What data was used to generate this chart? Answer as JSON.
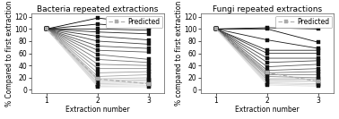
{
  "bacteria_title": "Bacteria repeated extractions",
  "fungi_title": "Fungi repeated extractions",
  "xlabel": "Extraction number",
  "ylabel": "% Compared to first extraction",
  "ylabel_fungi": "% compared to first extraction",
  "xlim": [
    0.7,
    3.3
  ],
  "ylim": [
    -5,
    125
  ],
  "yticks": [
    0,
    20,
    40,
    60,
    80,
    100,
    120
  ],
  "xticks": [
    1,
    2,
    3
  ],
  "bacteria_lines": [
    [
      100,
      118,
      108
    ],
    [
      100,
      108,
      102
    ],
    [
      100,
      100,
      98
    ],
    [
      100,
      95,
      92
    ],
    [
      100,
      88,
      82
    ],
    [
      100,
      80,
      75
    ],
    [
      100,
      72,
      68
    ],
    [
      100,
      65,
      62
    ],
    [
      100,
      58,
      50
    ],
    [
      100,
      50,
      45
    ],
    [
      100,
      42,
      40
    ],
    [
      100,
      35,
      35
    ],
    [
      100,
      28,
      30
    ],
    [
      100,
      22,
      25
    ],
    [
      100,
      18,
      20
    ],
    [
      100,
      15,
      17
    ],
    [
      100,
      12,
      15
    ],
    [
      100,
      10,
      12
    ],
    [
      100,
      8,
      10
    ],
    [
      100,
      6,
      7
    ],
    [
      100,
      5,
      5
    ]
  ],
  "bacteria_predicted": [
    100,
    18,
    10
  ],
  "fungi_lines": [
    [
      100,
      102,
      100
    ],
    [
      100,
      100,
      78
    ],
    [
      100,
      82,
      68
    ],
    [
      100,
      65,
      65
    ],
    [
      100,
      60,
      60
    ],
    [
      100,
      52,
      52
    ],
    [
      100,
      45,
      48
    ],
    [
      100,
      38,
      42
    ],
    [
      100,
      32,
      35
    ],
    [
      100,
      28,
      30
    ],
    [
      100,
      25,
      25
    ],
    [
      100,
      22,
      20
    ],
    [
      100,
      18,
      18
    ],
    [
      100,
      15,
      14
    ],
    [
      100,
      12,
      10
    ],
    [
      100,
      10,
      8
    ],
    [
      100,
      8,
      6
    ]
  ],
  "fungi_predicted": [
    100,
    28,
    14
  ],
  "line_colors_bacteria": [
    "#000000",
    "#0d0d0d",
    "#1a1a1a",
    "#262626",
    "#333333",
    "#404040",
    "#4d4d4d",
    "#595959",
    "#666666",
    "#737373",
    "#808080",
    "#8c8c8c",
    "#999999",
    "#a6a6a6",
    "#b3b3b3",
    "#bfbfbf",
    "#cccccc",
    "#cccccc",
    "#d9d9d9",
    "#d9d9d9",
    "#e0e0e0"
  ],
  "line_colors_fungi": [
    "#000000",
    "#0d0d0d",
    "#1a1a1a",
    "#262626",
    "#333333",
    "#404040",
    "#4d4d4d",
    "#595959",
    "#666666",
    "#737373",
    "#808080",
    "#8c8c8c",
    "#999999",
    "#b3b3b3",
    "#cccccc",
    "#d9d9d9",
    "#e0e0e0"
  ],
  "predicted_color": "#aaaaaa",
  "background_color": "#ffffff",
  "title_fontsize": 6.5,
  "axis_fontsize": 5.5,
  "tick_fontsize": 5.5,
  "legend_fontsize": 5.5,
  "line_width": 0.6,
  "marker_size": 2.5
}
